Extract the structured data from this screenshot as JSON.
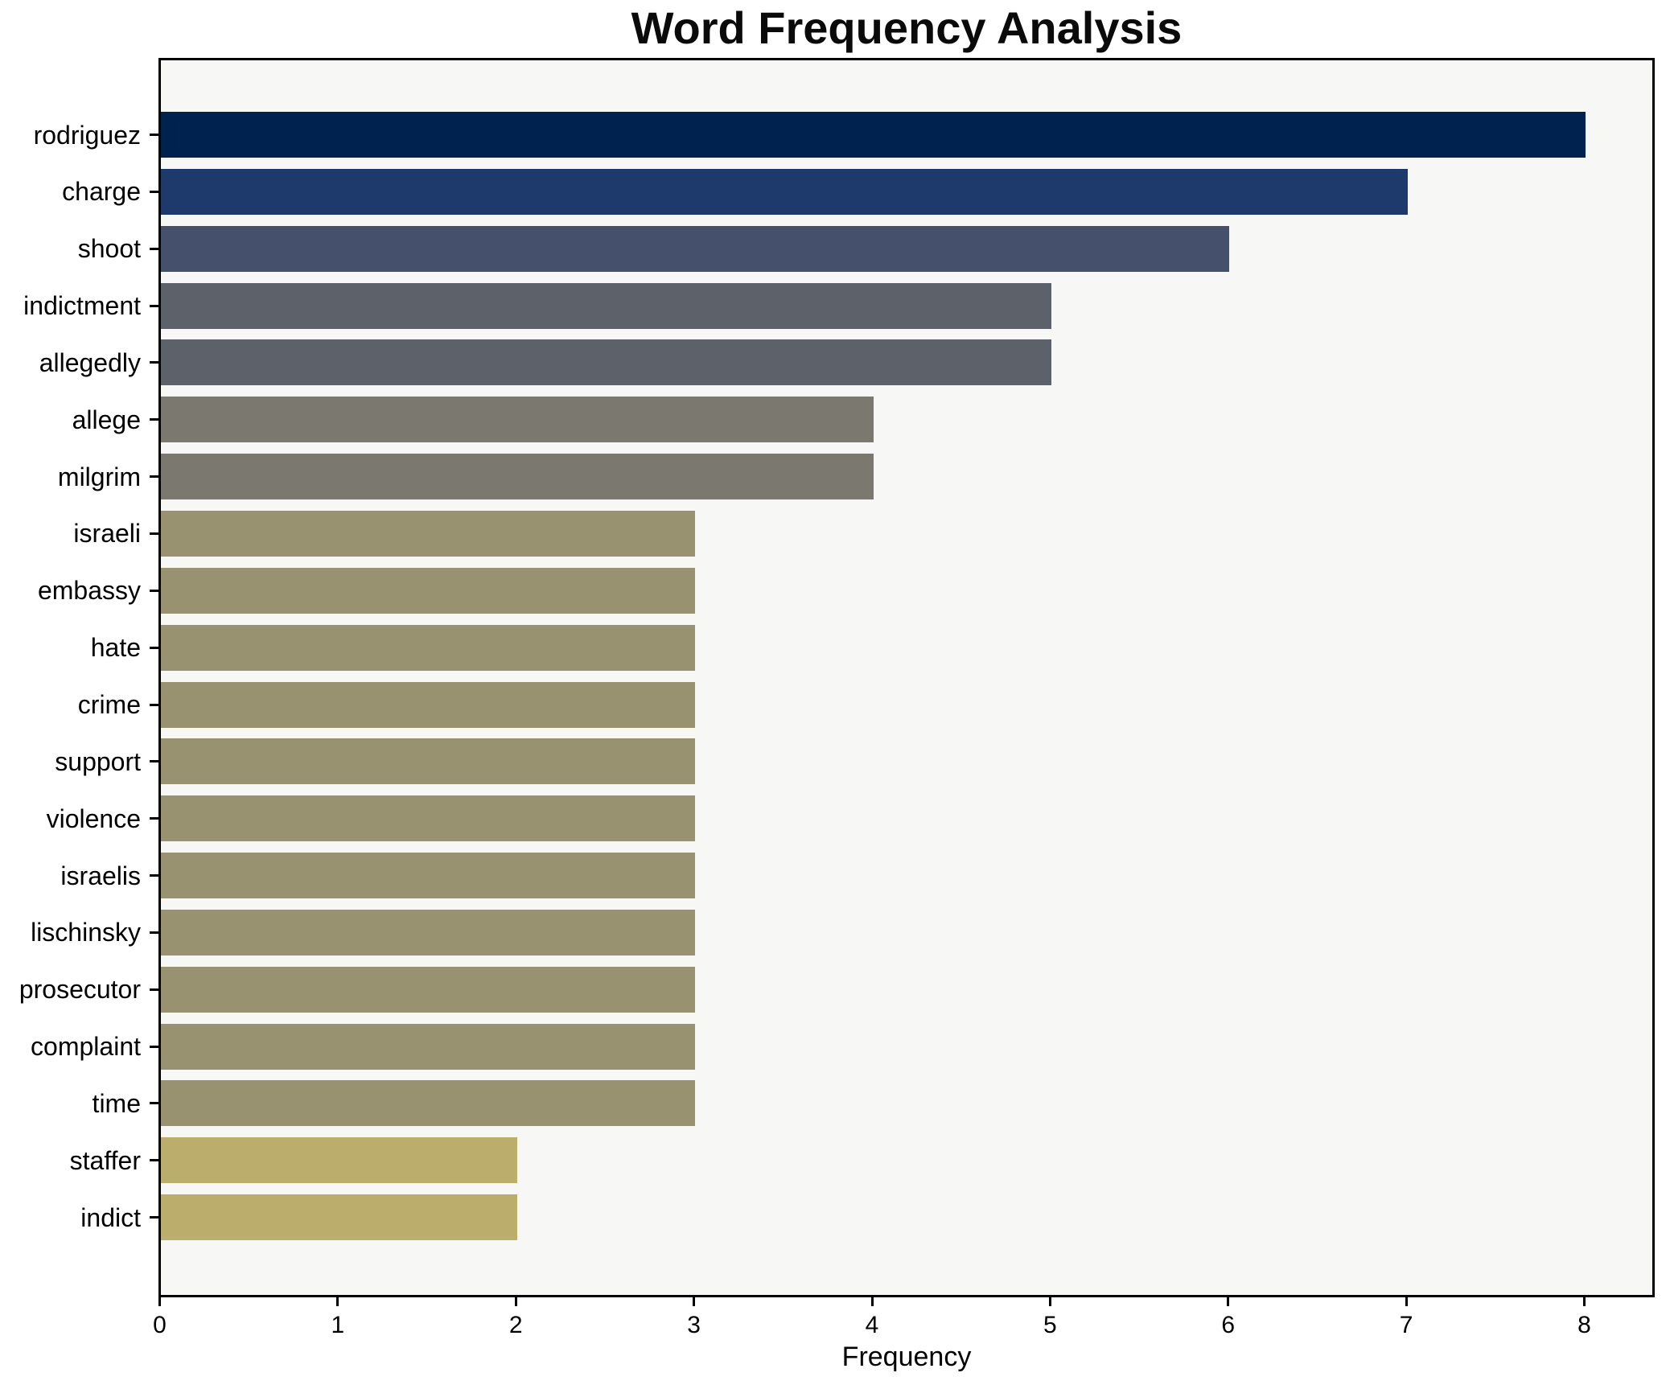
{
  "chart_data": {
    "type": "bar",
    "orientation": "horizontal",
    "title": "Word Frequency Analysis",
    "xlabel": "Frequency",
    "ylabel": "",
    "xlim": [
      0,
      8
    ],
    "xticks": [
      0,
      1,
      2,
      3,
      4,
      5,
      6,
      7,
      8
    ],
    "grid": false,
    "legend": null,
    "categories": [
      "rodriguez",
      "charge",
      "shoot",
      "indictment",
      "allegedly",
      "allege",
      "milgrim",
      "israeli",
      "embassy",
      "hate",
      "crime",
      "support",
      "violence",
      "israelis",
      "lischinsky",
      "prosecutor",
      "complaint",
      "time",
      "staffer",
      "indict"
    ],
    "values": [
      8,
      7,
      6,
      5,
      5,
      4,
      4,
      3,
      3,
      3,
      3,
      3,
      3,
      3,
      3,
      3,
      3,
      3,
      2,
      2
    ],
    "bar_colors": [
      "#00224e",
      "#1e3a6d",
      "#45506c",
      "#5d6169",
      "#5d6169",
      "#7a786f",
      "#7a786f",
      "#999271",
      "#999271",
      "#999271",
      "#999271",
      "#999271",
      "#999271",
      "#999271",
      "#999271",
      "#999271",
      "#999271",
      "#999271",
      "#bbad6b",
      "#bbad6b"
    ],
    "colors": {
      "plot_background": "#f7f7f6",
      "figure_background": "#ffffff",
      "spine": "#000000",
      "text": "#000000"
    }
  }
}
